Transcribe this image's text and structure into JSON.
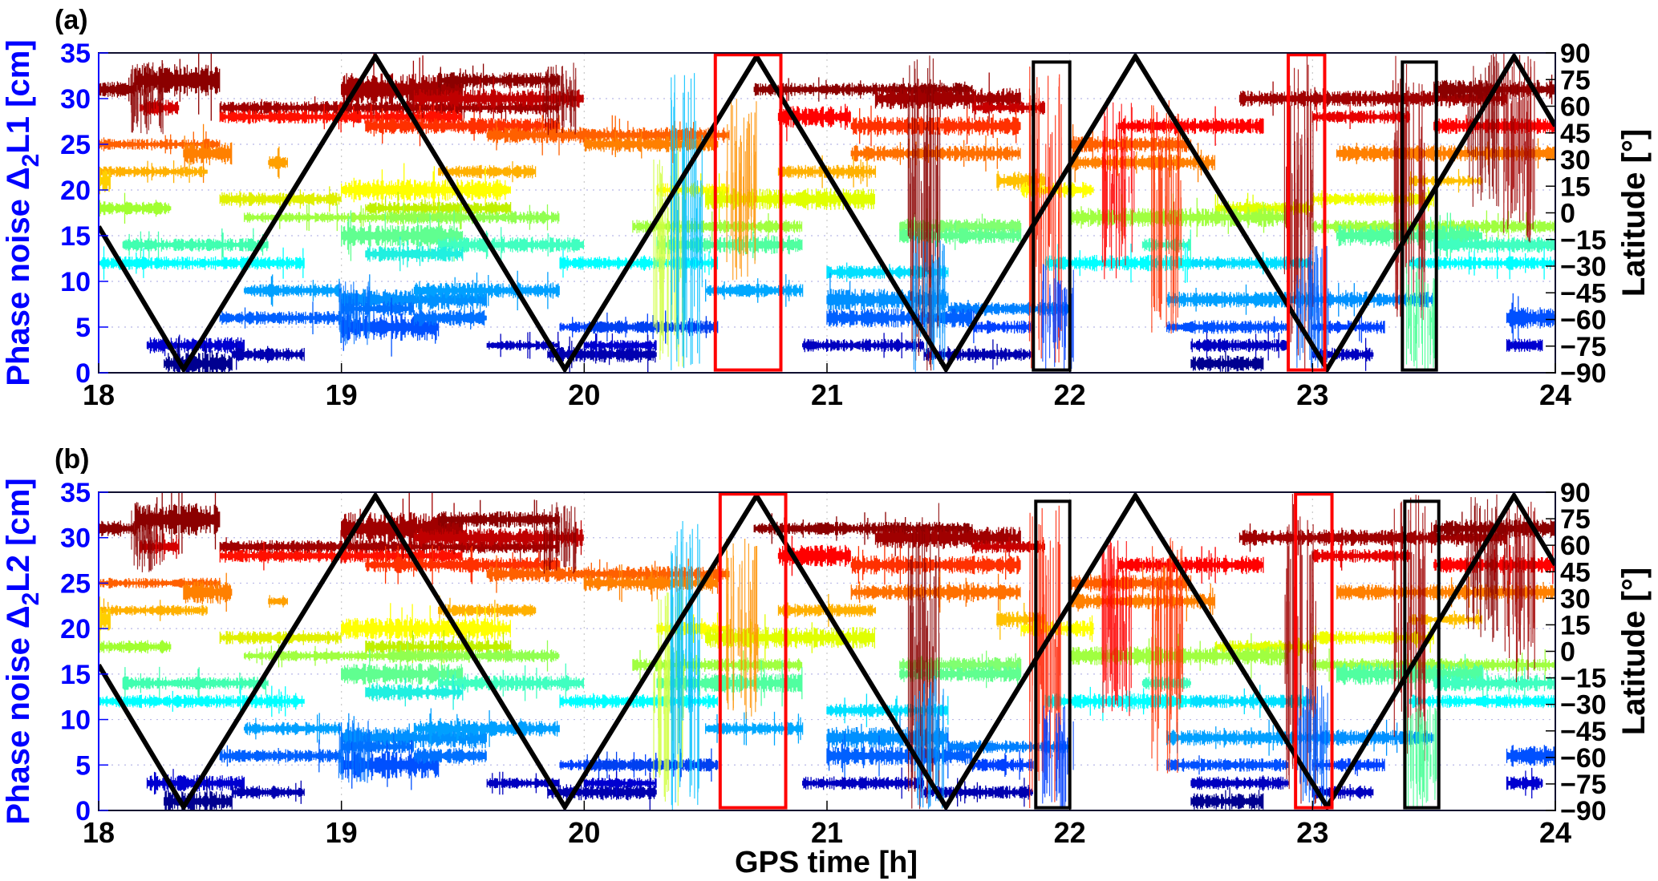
{
  "chart_data": {
    "type": "line",
    "xlabel": "GPS time [h]",
    "xlim": [
      18,
      24
    ],
    "xticks": [
      18,
      19,
      20,
      21,
      22,
      23,
      24
    ],
    "right_ylabel": "Latitude [°]",
    "right_ylim": [
      -90,
      90
    ],
    "right_yticks": [
      90,
      75,
      60,
      45,
      30,
      15,
      0,
      -15,
      -30,
      -45,
      -60,
      -75,
      -90
    ],
    "grid": true,
    "colormap": "jet (by satellite / band)",
    "latitude_series": {
      "name": "Latitude",
      "color": "#000000",
      "x": [
        18.0,
        18.35,
        19.14,
        19.92,
        20.71,
        21.49,
        22.27,
        23.06,
        23.83,
        24.0
      ],
      "y": [
        -7.7,
        -88,
        88,
        -88,
        88,
        -88,
        88,
        -88,
        88,
        48.9
      ]
    },
    "panels": [
      {
        "label": "(a)",
        "ylabel_prefix": "Phase noise Δ",
        "ylabel_sub": "2",
        "ylabel_suffix": "L1 [cm]",
        "ylim": [
          0,
          35
        ],
        "yticks": [
          0,
          5,
          10,
          15,
          20,
          25,
          30,
          35
        ],
        "boxes": [
          {
            "color": "#ff0000",
            "x": [
              20.54,
              20.81
            ],
            "y": [
              0.3,
              34.8
            ]
          },
          {
            "color": "#000000",
            "x": [
              21.85,
              22.0
            ],
            "y": [
              0.3,
              34.0
            ]
          },
          {
            "color": "#ff0000",
            "x": [
              22.9,
              23.05
            ],
            "y": [
              0.3,
              34.8
            ]
          },
          {
            "color": "#000000",
            "x": [
              23.37,
              23.51
            ],
            "y": [
              0.3,
              34.0
            ]
          }
        ]
      },
      {
        "label": "(b)",
        "ylabel_prefix": "Phase noise Δ",
        "ylabel_sub": "2",
        "ylabel_suffix": "L2 [cm]",
        "ylim": [
          0,
          35
        ],
        "yticks": [
          0,
          5,
          10,
          15,
          20,
          25,
          30,
          35
        ],
        "boxes": [
          {
            "color": "#ff0000",
            "x": [
              20.56,
              20.83
            ],
            "y": [
              0.3,
              34.8
            ]
          },
          {
            "color": "#000000",
            "x": [
              21.86,
              22.0
            ],
            "y": [
              0.3,
              34.0
            ]
          },
          {
            "color": "#ff0000",
            "x": [
              22.93,
              23.08
            ],
            "y": [
              0.3,
              34.8
            ]
          },
          {
            "color": "#000000",
            "x": [
              23.38,
              23.52
            ],
            "y": [
              0.3,
              34.0
            ]
          }
        ]
      }
    ],
    "noise_segments": [
      {
        "level": 31,
        "start": 18.0,
        "end": 18.15,
        "amp": 0.6,
        "color": "#8b0000"
      },
      {
        "level": 32,
        "start": 18.15,
        "end": 18.5,
        "amp": 1.2,
        "color": "#8b0000"
      },
      {
        "level": 29,
        "start": 18.5,
        "end": 19.9,
        "amp": 0.5,
        "color": "#a00000"
      },
      {
        "level": 29,
        "start": 18.17,
        "end": 18.33,
        "amp": 0.6,
        "color": "#d40000"
      },
      {
        "level": 28,
        "start": 18.5,
        "end": 19.5,
        "amp": 0.5,
        "color": "#ff1000"
      },
      {
        "level": 31,
        "start": 19.0,
        "end": 19.5,
        "amp": 1.2,
        "color": "#a00000"
      },
      {
        "level": 32,
        "start": 19.4,
        "end": 19.9,
        "amp": 0.6,
        "color": "#8b0000"
      },
      {
        "level": 30,
        "start": 19.3,
        "end": 20.0,
        "amp": 0.7,
        "color": "#c00000"
      },
      {
        "level": 27,
        "start": 19.1,
        "end": 19.9,
        "amp": 0.6,
        "color": "#ff3000"
      },
      {
        "level": 26,
        "start": 19.6,
        "end": 20.6,
        "amp": 0.6,
        "color": "#ff6000"
      },
      {
        "level": 31,
        "start": 20.7,
        "end": 21.6,
        "amp": 0.5,
        "color": "#8b0000"
      },
      {
        "level": 30,
        "start": 21.2,
        "end": 21.8,
        "amp": 0.8,
        "color": "#a00000"
      },
      {
        "level": 29,
        "start": 21.6,
        "end": 21.9,
        "amp": 0.5,
        "color": "#c80000"
      },
      {
        "level": 28,
        "start": 20.8,
        "end": 21.1,
        "amp": 0.8,
        "color": "#ff0000"
      },
      {
        "level": 27,
        "start": 21.1,
        "end": 21.8,
        "amp": 0.7,
        "color": "#ff3000"
      },
      {
        "level": 27,
        "start": 22.2,
        "end": 22.8,
        "amp": 0.6,
        "color": "#ff0000"
      },
      {
        "level": 30,
        "start": 22.7,
        "end": 23.8,
        "amp": 0.6,
        "color": "#a00000"
      },
      {
        "level": 28,
        "start": 23.0,
        "end": 23.4,
        "amp": 0.5,
        "color": "#e80000"
      },
      {
        "level": 31,
        "start": 23.5,
        "end": 24.0,
        "amp": 0.7,
        "color": "#8b0000"
      },
      {
        "level": 27,
        "start": 23.5,
        "end": 24.0,
        "amp": 0.6,
        "color": "#ff0000"
      },
      {
        "level": 25,
        "start": 18.0,
        "end": 18.5,
        "amp": 0.4,
        "color": "#ff6000"
      },
      {
        "level": 24,
        "start": 18.35,
        "end": 18.55,
        "amp": 0.9,
        "color": "#ff8000"
      },
      {
        "level": 23,
        "start": 18.7,
        "end": 18.78,
        "amp": 0.5,
        "color": "#ffa000"
      },
      {
        "level": 25,
        "start": 20.0,
        "end": 20.55,
        "amp": 0.6,
        "color": "#ff8000"
      },
      {
        "level": 24,
        "start": 21.1,
        "end": 21.8,
        "amp": 0.6,
        "color": "#ff7000"
      },
      {
        "level": 23,
        "start": 22.0,
        "end": 22.6,
        "amp": 0.6,
        "color": "#ff8000"
      },
      {
        "level": 25,
        "start": 22.0,
        "end": 22.5,
        "amp": 0.6,
        "color": "#ff6000"
      },
      {
        "level": 24,
        "start": 23.1,
        "end": 24.0,
        "amp": 0.6,
        "color": "#ff8000"
      },
      {
        "level": 22,
        "start": 18.0,
        "end": 18.45,
        "amp": 0.4,
        "color": "#ffb000"
      },
      {
        "level": 21,
        "start": 18.0,
        "end": 18.05,
        "amp": 1.0,
        "color": "#ffd000"
      },
      {
        "level": 22,
        "start": 19.4,
        "end": 19.8,
        "amp": 0.5,
        "color": "#ffb000"
      },
      {
        "level": 22,
        "start": 20.8,
        "end": 21.2,
        "amp": 0.5,
        "color": "#ffb000"
      },
      {
        "level": 21,
        "start": 21.7,
        "end": 21.9,
        "amp": 0.6,
        "color": "#ffc000"
      },
      {
        "level": 21,
        "start": 23.4,
        "end": 23.7,
        "amp": 0.4,
        "color": "#ffc000"
      },
      {
        "level": 19,
        "start": 18.5,
        "end": 19.0,
        "amp": 0.5,
        "color": "#e0f000"
      },
      {
        "level": 20,
        "start": 19.0,
        "end": 19.7,
        "amp": 0.8,
        "color": "#ffff00"
      },
      {
        "level": 18,
        "start": 19.1,
        "end": 19.7,
        "amp": 0.5,
        "color": "#c0f000"
      },
      {
        "level": 20,
        "start": 20.3,
        "end": 20.6,
        "amp": 0.5,
        "color": "#ffff00"
      },
      {
        "level": 19,
        "start": 20.5,
        "end": 21.2,
        "amp": 0.8,
        "color": "#e0ff00"
      },
      {
        "level": 20,
        "start": 21.8,
        "end": 22.1,
        "amp": 0.6,
        "color": "#ffff00"
      },
      {
        "level": 18,
        "start": 22.6,
        "end": 23.0,
        "amp": 0.5,
        "color": "#e0ff00"
      },
      {
        "level": 19,
        "start": 23.0,
        "end": 23.5,
        "amp": 0.5,
        "color": "#f0ff00"
      },
      {
        "level": 18,
        "start": 18.0,
        "end": 18.3,
        "amp": 0.5,
        "color": "#a0ff30"
      },
      {
        "level": 17,
        "start": 18.6,
        "end": 19.5,
        "amp": 0.4,
        "color": "#a0ff40"
      },
      {
        "level": 17,
        "start": 19.2,
        "end": 19.9,
        "amp": 0.5,
        "color": "#90ff50"
      },
      {
        "level": 16,
        "start": 20.2,
        "end": 20.9,
        "amp": 0.5,
        "color": "#a0ff40"
      },
      {
        "level": 16,
        "start": 21.3,
        "end": 21.8,
        "amp": 0.6,
        "color": "#80ff70"
      },
      {
        "level": 17,
        "start": 22.0,
        "end": 22.9,
        "amp": 0.7,
        "color": "#a0ff40"
      },
      {
        "level": 16,
        "start": 23.0,
        "end": 24.0,
        "amp": 0.5,
        "color": "#a0ff40"
      },
      {
        "level": 14,
        "start": 18.1,
        "end": 18.7,
        "amp": 0.5,
        "color": "#40ffb0"
      },
      {
        "level": 15,
        "start": 19.0,
        "end": 19.5,
        "amp": 0.8,
        "color": "#60ff90"
      },
      {
        "level": 14,
        "start": 19.4,
        "end": 20.0,
        "amp": 0.6,
        "color": "#40ffc0"
      },
      {
        "level": 14,
        "start": 20.3,
        "end": 20.9,
        "amp": 0.7,
        "color": "#50ffa0"
      },
      {
        "level": 15,
        "start": 21.3,
        "end": 21.8,
        "amp": 0.6,
        "color": "#60ff90"
      },
      {
        "level": 14,
        "start": 22.3,
        "end": 22.5,
        "amp": 0.5,
        "color": "#40ffc0"
      },
      {
        "level": 15,
        "start": 23.1,
        "end": 23.7,
        "amp": 0.8,
        "color": "#50ffa0"
      },
      {
        "level": 14,
        "start": 23.5,
        "end": 24.0,
        "amp": 0.6,
        "color": "#40ffc0"
      },
      {
        "level": 12,
        "start": 18.0,
        "end": 18.85,
        "amp": 0.5,
        "color": "#00ffff"
      },
      {
        "level": 13,
        "start": 19.1,
        "end": 19.5,
        "amp": 0.6,
        "color": "#20f0e0"
      },
      {
        "level": 12,
        "start": 19.9,
        "end": 20.55,
        "amp": 0.5,
        "color": "#00ffff"
      },
      {
        "level": 11,
        "start": 21.0,
        "end": 21.5,
        "amp": 0.5,
        "color": "#00e0ff"
      },
      {
        "level": 12,
        "start": 21.9,
        "end": 22.5,
        "amp": 0.6,
        "color": "#00ffff"
      },
      {
        "level": 12,
        "start": 22.5,
        "end": 23.0,
        "amp": 0.5,
        "color": "#00e0ff"
      },
      {
        "level": 12,
        "start": 23.4,
        "end": 24.0,
        "amp": 0.5,
        "color": "#00ffff"
      },
      {
        "level": 9,
        "start": 18.6,
        "end": 19.0,
        "amp": 0.5,
        "color": "#00a0ff"
      },
      {
        "level": 8,
        "start": 19.0,
        "end": 19.6,
        "amp": 0.8,
        "color": "#0090ff"
      },
      {
        "level": 9,
        "start": 19.3,
        "end": 19.9,
        "amp": 0.6,
        "color": "#00a0ff"
      },
      {
        "level": 9,
        "start": 20.5,
        "end": 20.9,
        "amp": 0.5,
        "color": "#00a8ff"
      },
      {
        "level": 8,
        "start": 21.0,
        "end": 21.5,
        "amp": 0.8,
        "color": "#0090ff"
      },
      {
        "level": 7,
        "start": 21.5,
        "end": 22.0,
        "amp": 0.5,
        "color": "#0080ff"
      },
      {
        "level": 8,
        "start": 22.4,
        "end": 23.0,
        "amp": 0.6,
        "color": "#00a0ff"
      },
      {
        "level": 8,
        "start": 23.0,
        "end": 23.5,
        "amp": 0.6,
        "color": "#0090ff"
      },
      {
        "level": 6,
        "start": 18.5,
        "end": 19.0,
        "amp": 0.5,
        "color": "#0060ff"
      },
      {
        "level": 7,
        "start": 19.0,
        "end": 19.3,
        "amp": 0.5,
        "color": "#0070ff"
      },
      {
        "level": 5,
        "start": 19.0,
        "end": 19.4,
        "amp": 1.0,
        "color": "#0050ff"
      },
      {
        "level": 6,
        "start": 19.3,
        "end": 19.6,
        "amp": 0.6,
        "color": "#0070ff"
      },
      {
        "level": 5,
        "start": 19.9,
        "end": 20.5,
        "amp": 0.4,
        "color": "#0040ff"
      },
      {
        "level": 5,
        "start": 20.0,
        "end": 20.55,
        "amp": 0.5,
        "color": "#0040f0"
      },
      {
        "level": 6,
        "start": 21.0,
        "end": 21.6,
        "amp": 0.7,
        "color": "#0060ff"
      },
      {
        "level": 5,
        "start": 21.6,
        "end": 21.85,
        "amp": 0.5,
        "color": "#0040ff"
      },
      {
        "level": 5,
        "start": 22.4,
        "end": 22.9,
        "amp": 0.5,
        "color": "#0050ff"
      },
      {
        "level": 5,
        "start": 23.0,
        "end": 23.3,
        "amp": 0.5,
        "color": "#0040ff"
      },
      {
        "level": 6,
        "start": 23.8,
        "end": 24.0,
        "amp": 0.8,
        "color": "#0050ff"
      },
      {
        "level": 3,
        "start": 18.2,
        "end": 18.6,
        "amp": 0.6,
        "color": "#0000d0"
      },
      {
        "level": 1,
        "start": 18.27,
        "end": 18.55,
        "amp": 0.8,
        "color": "#000090"
      },
      {
        "level": 2,
        "start": 18.55,
        "end": 18.85,
        "amp": 0.5,
        "color": "#0000b0"
      },
      {
        "level": 3,
        "start": 19.6,
        "end": 19.9,
        "amp": 0.4,
        "color": "#0000c0"
      },
      {
        "level": 2,
        "start": 19.85,
        "end": 20.3,
        "amp": 0.6,
        "color": "#0000b0"
      },
      {
        "level": 3,
        "start": 20.0,
        "end": 20.3,
        "amp": 0.4,
        "color": "#0000d0"
      },
      {
        "level": 3,
        "start": 20.9,
        "end": 21.4,
        "amp": 0.5,
        "color": "#0000c0"
      },
      {
        "level": 2,
        "start": 21.4,
        "end": 21.85,
        "amp": 0.5,
        "color": "#0000b0"
      },
      {
        "level": 3,
        "start": 22.5,
        "end": 22.9,
        "amp": 0.5,
        "color": "#0000c0"
      },
      {
        "level": 1,
        "start": 22.5,
        "end": 22.8,
        "amp": 0.6,
        "color": "#000090"
      },
      {
        "level": 2,
        "start": 23.0,
        "end": 23.25,
        "amp": 0.5,
        "color": "#0000c0"
      },
      {
        "level": 3,
        "start": 23.8,
        "end": 23.95,
        "amp": 0.5,
        "color": "#0000d0"
      }
    ],
    "bursts": [
      {
        "t": 18.2,
        "lo": 26,
        "hi": 34,
        "color": "#8b0000"
      },
      {
        "t": 19.05,
        "lo": 3,
        "hi": 10,
        "color": "#0070ff"
      },
      {
        "t": 19.9,
        "lo": 26,
        "hi": 34,
        "color": "#8b0000"
      },
      {
        "t": 20.35,
        "lo": 0,
        "hi": 25,
        "color": "#d0ff40"
      },
      {
        "t": 20.42,
        "lo": 0,
        "hi": 33,
        "color": "#00c0ff"
      },
      {
        "t": 20.65,
        "lo": 10,
        "hi": 30,
        "color": "#ff9000"
      },
      {
        "t": 21.4,
        "lo": 0,
        "hi": 35,
        "color": "#8b0000"
      },
      {
        "t": 21.42,
        "lo": 0,
        "hi": 15,
        "color": "#0090ff"
      },
      {
        "t": 21.9,
        "lo": 0,
        "hi": 34,
        "color": "#ff2000"
      },
      {
        "t": 21.95,
        "lo": 0,
        "hi": 12,
        "color": "#0040ff"
      },
      {
        "t": 22.2,
        "lo": 10,
        "hi": 30,
        "color": "#ff0000"
      },
      {
        "t": 22.4,
        "lo": 4,
        "hi": 30,
        "color": "#ff3000"
      },
      {
        "t": 22.95,
        "lo": 0,
        "hi": 35,
        "color": "#a00000"
      },
      {
        "t": 23.0,
        "lo": 0,
        "hi": 14,
        "color": "#0060ff"
      },
      {
        "t": 23.4,
        "lo": 5,
        "hi": 35,
        "color": "#a00000"
      },
      {
        "t": 23.45,
        "lo": 0,
        "hi": 12,
        "color": "#40ff90"
      },
      {
        "t": 23.7,
        "lo": 18,
        "hi": 35,
        "color": "#8b0000"
      },
      {
        "t": 23.85,
        "lo": 14,
        "hi": 35,
        "color": "#a00000"
      }
    ]
  }
}
